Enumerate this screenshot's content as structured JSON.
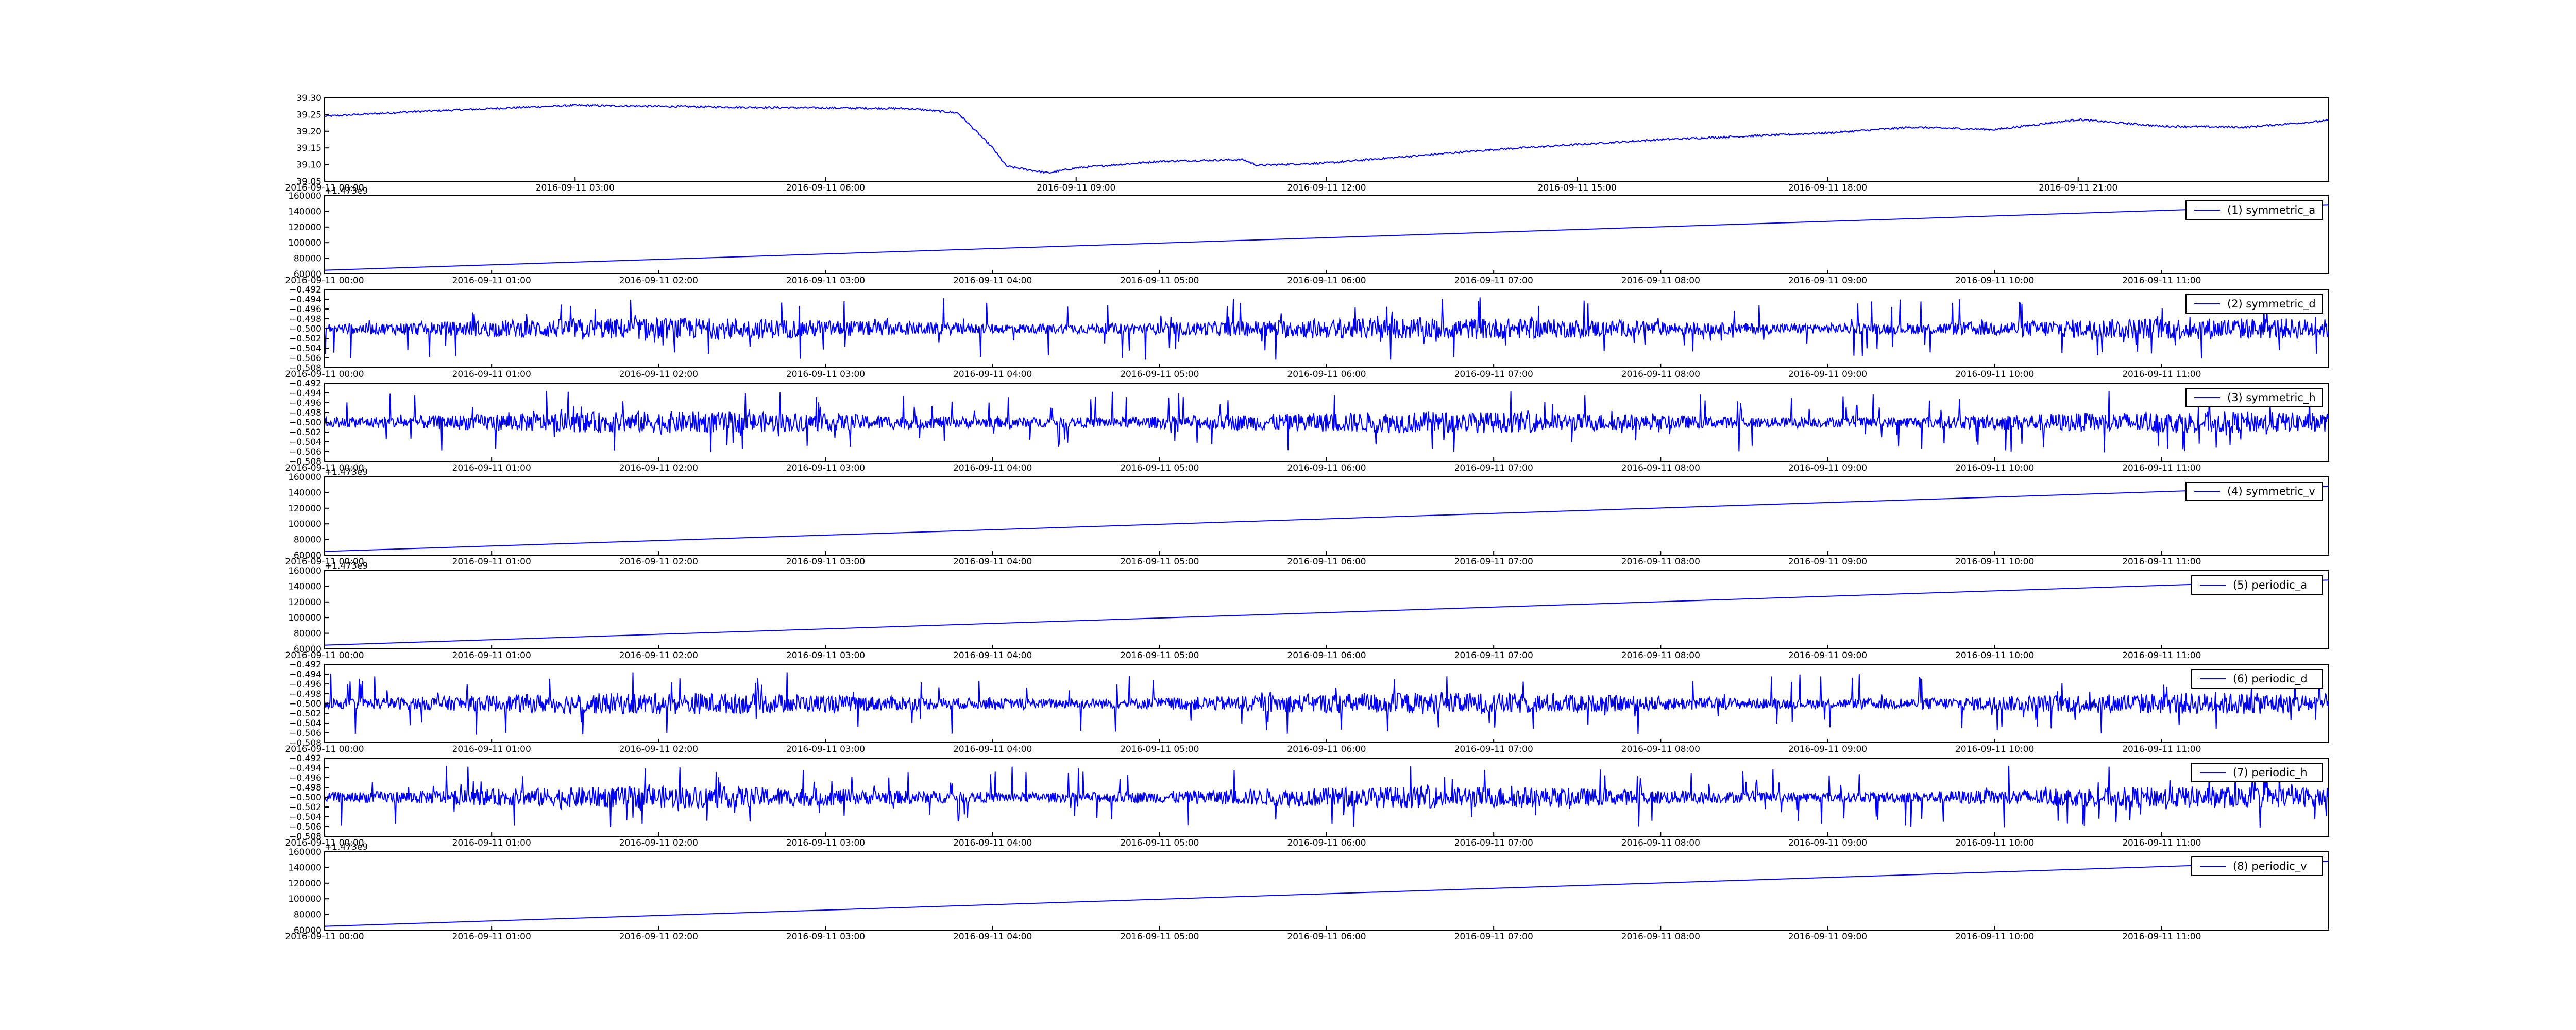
{
  "figure": {
    "background": "#ffffff",
    "line_color": "#0000ff",
    "frame_color": "#000000"
  },
  "chart_data": [
    {
      "type": "line",
      "series": [],
      "x_tick_labels": [
        "2016-09-11 00:00",
        "2016-09-11 03:00",
        "2016-09-11 06:00",
        "2016-09-11 09:00",
        "2016-09-11 12:00",
        "2016-09-11 15:00",
        "2016-09-11 18:00",
        "2016-09-11 21:00"
      ],
      "xlim": [
        "2016-09-11 00:00",
        "2016-09-12 00:00"
      ],
      "y_tick_labels": [
        "39.05",
        "39.10",
        "39.15",
        "39.20",
        "39.25",
        "39.30"
      ],
      "ylim": [
        39.05,
        39.3
      ],
      "offset_text": "",
      "legend": null,
      "trace": {
        "kind": "piecewise",
        "points": [
          [
            "2016-09-11 00:00",
            39.245
          ],
          [
            "2016-09-11 01:00",
            39.258
          ],
          [
            "2016-09-11 03:00",
            39.278
          ],
          [
            "2016-09-11 05:00",
            39.272
          ],
          [
            "2016-09-11 07:00",
            39.268
          ],
          [
            "2016-09-11 07:35",
            39.255
          ],
          [
            "2016-09-11 08:00",
            39.15
          ],
          [
            "2016-09-11 08:10",
            39.095
          ],
          [
            "2016-09-11 08:40",
            39.075
          ],
          [
            "2016-09-11 09:00",
            39.09
          ],
          [
            "2016-09-11 10:00",
            39.11
          ],
          [
            "2016-09-11 11:00",
            39.115
          ],
          [
            "2016-09-11 11:10",
            39.098
          ],
          [
            "2016-09-11 12:00",
            39.105
          ],
          [
            "2016-09-11 14:00",
            39.145
          ],
          [
            "2016-09-11 16:00",
            39.175
          ],
          [
            "2016-09-11 18:00",
            39.195
          ],
          [
            "2016-09-11 19:00",
            39.212
          ],
          [
            "2016-09-11 20:00",
            39.205
          ],
          [
            "2016-09-11 21:00",
            39.235
          ],
          [
            "2016-09-11 22:00",
            39.215
          ],
          [
            "2016-09-11 23:00",
            39.212
          ],
          [
            "2016-09-12 00:00",
            39.232
          ]
        ],
        "noise_amplitude": 0.003
      }
    },
    {
      "type": "line",
      "series": [
        {
          "name": "(1) symmetric_a"
        }
      ],
      "x_tick_labels": [
        "2016-09-11 00:00",
        "2016-09-11 01:00",
        "2016-09-11 02:00",
        "2016-09-11 03:00",
        "2016-09-11 04:00",
        "2016-09-11 05:00",
        "2016-09-11 06:00",
        "2016-09-11 07:00",
        "2016-09-11 08:00",
        "2016-09-11 09:00",
        "2016-09-11 10:00",
        "2016-09-11 11:00"
      ],
      "xlim": [
        "2016-09-11 00:00",
        "2016-09-11 12:00"
      ],
      "y_tick_labels": [
        "60000",
        "80000",
        "100000",
        "120000",
        "140000",
        "160000"
      ],
      "ylim": [
        60000,
        160000
      ],
      "offset_text": "+1.473e9",
      "legend": "top-right",
      "trace": {
        "kind": "linear",
        "from": [
          "2016-09-11 00:00",
          64800
        ],
        "to": [
          "2016-09-11 12:00",
          148000
        ]
      }
    },
    {
      "type": "line",
      "series": [
        {
          "name": "(2) symmetric_d"
        }
      ],
      "x_tick_labels": [
        "2016-09-11 00:00",
        "2016-09-11 01:00",
        "2016-09-11 02:00",
        "2016-09-11 03:00",
        "2016-09-11 04:00",
        "2016-09-11 05:00",
        "2016-09-11 06:00",
        "2016-09-11 07:00",
        "2016-09-11 08:00",
        "2016-09-11 09:00",
        "2016-09-11 10:00",
        "2016-09-11 11:00"
      ],
      "xlim": [
        "2016-09-11 00:00",
        "2016-09-11 12:00"
      ],
      "y_tick_labels": [
        "−0.508",
        "−0.506",
        "−0.504",
        "−0.502",
        "−0.500",
        "−0.498",
        "−0.496",
        "−0.494",
        "−0.492"
      ],
      "ylim": [
        -0.508,
        -0.492
      ],
      "offset_text": "",
      "legend": "top-right",
      "trace": {
        "kind": "noise",
        "center": -0.5,
        "amplitude": 0.004
      }
    },
    {
      "type": "line",
      "series": [
        {
          "name": "(3) symmetric_h"
        }
      ],
      "x_tick_labels": [
        "2016-09-11 00:00",
        "2016-09-11 01:00",
        "2016-09-11 02:00",
        "2016-09-11 03:00",
        "2016-09-11 04:00",
        "2016-09-11 05:00",
        "2016-09-11 06:00",
        "2016-09-11 07:00",
        "2016-09-11 08:00",
        "2016-09-11 09:00",
        "2016-09-11 10:00",
        "2016-09-11 11:00"
      ],
      "xlim": [
        "2016-09-11 00:00",
        "2016-09-11 12:00"
      ],
      "y_tick_labels": [
        "−0.508",
        "−0.506",
        "−0.504",
        "−0.502",
        "−0.500",
        "−0.498",
        "−0.496",
        "−0.494",
        "−0.492"
      ],
      "ylim": [
        -0.508,
        -0.492
      ],
      "offset_text": "",
      "legend": "top-right",
      "trace": {
        "kind": "noise",
        "center": -0.5,
        "amplitude": 0.004
      }
    },
    {
      "type": "line",
      "series": [
        {
          "name": "(4) symmetric_v"
        }
      ],
      "x_tick_labels": [
        "2016-09-11 00:00",
        "2016-09-11 01:00",
        "2016-09-11 02:00",
        "2016-09-11 03:00",
        "2016-09-11 04:00",
        "2016-09-11 05:00",
        "2016-09-11 06:00",
        "2016-09-11 07:00",
        "2016-09-11 08:00",
        "2016-09-11 09:00",
        "2016-09-11 10:00",
        "2016-09-11 11:00"
      ],
      "xlim": [
        "2016-09-11 00:00",
        "2016-09-11 12:00"
      ],
      "y_tick_labels": [
        "60000",
        "80000",
        "100000",
        "120000",
        "140000",
        "160000"
      ],
      "ylim": [
        60000,
        160000
      ],
      "offset_text": "+1.473e9",
      "legend": "top-right",
      "trace": {
        "kind": "linear",
        "from": [
          "2016-09-11 00:00",
          64800
        ],
        "to": [
          "2016-09-11 12:00",
          148000
        ]
      }
    },
    {
      "type": "line",
      "series": [
        {
          "name": "(5) periodic_a"
        }
      ],
      "x_tick_labels": [
        "2016-09-11 00:00",
        "2016-09-11 01:00",
        "2016-09-11 02:00",
        "2016-09-11 03:00",
        "2016-09-11 04:00",
        "2016-09-11 05:00",
        "2016-09-11 06:00",
        "2016-09-11 07:00",
        "2016-09-11 08:00",
        "2016-09-11 09:00",
        "2016-09-11 10:00",
        "2016-09-11 11:00"
      ],
      "xlim": [
        "2016-09-11 00:00",
        "2016-09-11 12:00"
      ],
      "y_tick_labels": [
        "60000",
        "80000",
        "100000",
        "120000",
        "140000",
        "160000"
      ],
      "ylim": [
        60000,
        160000
      ],
      "offset_text": "+1.473e9",
      "legend": "top-right",
      "trace": {
        "kind": "linear",
        "from": [
          "2016-09-11 00:00",
          64800
        ],
        "to": [
          "2016-09-11 12:00",
          148000
        ]
      }
    },
    {
      "type": "line",
      "series": [
        {
          "name": "(6) periodic_d"
        }
      ],
      "x_tick_labels": [
        "2016-09-11 00:00",
        "2016-09-11 01:00",
        "2016-09-11 02:00",
        "2016-09-11 03:00",
        "2016-09-11 04:00",
        "2016-09-11 05:00",
        "2016-09-11 06:00",
        "2016-09-11 07:00",
        "2016-09-11 08:00",
        "2016-09-11 09:00",
        "2016-09-11 10:00",
        "2016-09-11 11:00"
      ],
      "xlim": [
        "2016-09-11 00:00",
        "2016-09-11 12:00"
      ],
      "y_tick_labels": [
        "−0.508",
        "−0.506",
        "−0.504",
        "−0.502",
        "−0.500",
        "−0.498",
        "−0.496",
        "−0.494",
        "−0.492"
      ],
      "ylim": [
        -0.508,
        -0.492
      ],
      "offset_text": "",
      "legend": "top-right",
      "trace": {
        "kind": "noise",
        "center": -0.5,
        "amplitude": 0.004
      }
    },
    {
      "type": "line",
      "series": [
        {
          "name": "(7) periodic_h"
        }
      ],
      "x_tick_labels": [
        "2016-09-11 00:00",
        "2016-09-11 01:00",
        "2016-09-11 02:00",
        "2016-09-11 03:00",
        "2016-09-11 04:00",
        "2016-09-11 05:00",
        "2016-09-11 06:00",
        "2016-09-11 07:00",
        "2016-09-11 08:00",
        "2016-09-11 09:00",
        "2016-09-11 10:00",
        "2016-09-11 11:00"
      ],
      "xlim": [
        "2016-09-11 00:00",
        "2016-09-11 12:00"
      ],
      "y_tick_labels": [
        "−0.508",
        "−0.506",
        "−0.504",
        "−0.502",
        "−0.500",
        "−0.498",
        "−0.496",
        "−0.494",
        "−0.492"
      ],
      "ylim": [
        -0.508,
        -0.492
      ],
      "offset_text": "",
      "legend": "top-right",
      "trace": {
        "kind": "noise",
        "center": -0.5,
        "amplitude": 0.004
      }
    },
    {
      "type": "line",
      "series": [
        {
          "name": "(8) periodic_v"
        }
      ],
      "x_tick_labels": [
        "2016-09-11 00:00",
        "2016-09-11 01:00",
        "2016-09-11 02:00",
        "2016-09-11 03:00",
        "2016-09-11 04:00",
        "2016-09-11 05:00",
        "2016-09-11 06:00",
        "2016-09-11 07:00",
        "2016-09-11 08:00",
        "2016-09-11 09:00",
        "2016-09-11 10:00",
        "2016-09-11 11:00"
      ],
      "xlim": [
        "2016-09-11 00:00",
        "2016-09-11 12:00"
      ],
      "y_tick_labels": [
        "60000",
        "80000",
        "100000",
        "120000",
        "140000",
        "160000"
      ],
      "ylim": [
        60000,
        160000
      ],
      "offset_text": "+1.473e9",
      "legend": "top-right",
      "trace": {
        "kind": "linear",
        "from": [
          "2016-09-11 00:00",
          64800
        ],
        "to": [
          "2016-09-11 12:00",
          148000
        ]
      }
    }
  ]
}
